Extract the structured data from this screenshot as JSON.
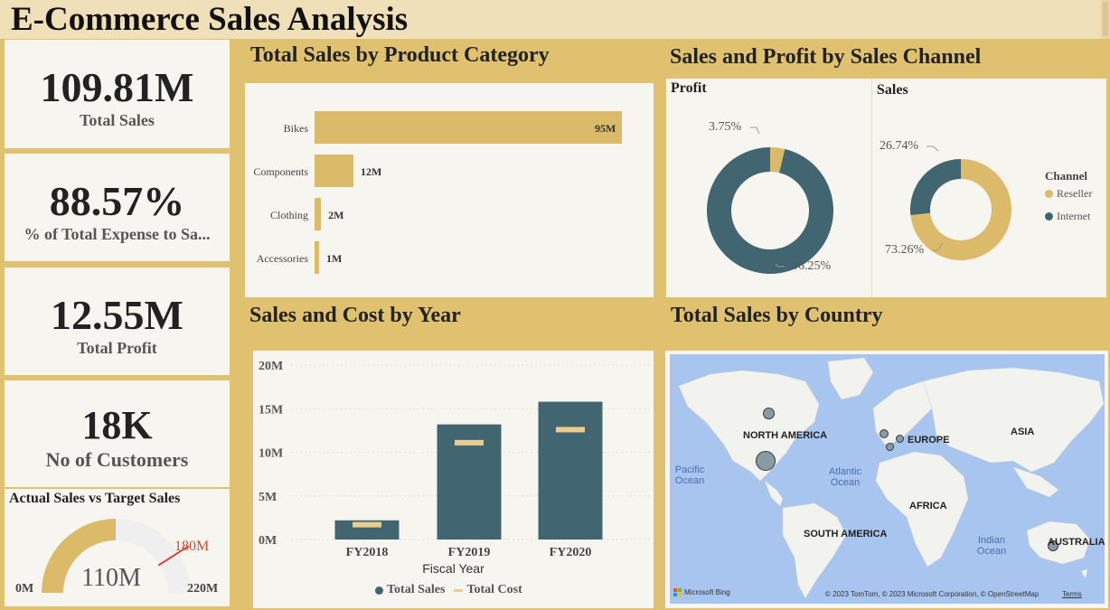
{
  "header": {
    "title": "E-Commerce Sales Analysis"
  },
  "kpis": [
    {
      "value": "109.81M",
      "label": "Total Sales"
    },
    {
      "value": "88.57%",
      "label": "% of Total Expense to Sa..."
    },
    {
      "value": "12.55M",
      "label": "Total Profit"
    },
    {
      "value": "18K",
      "label": "No of Customers"
    }
  ],
  "gauge": {
    "title": "Actual Sales vs Target Sales",
    "value_label": "110M",
    "target_label": "180M",
    "min_label": "0M",
    "max_label": "220M",
    "value": 110,
    "target": 180,
    "min": 0,
    "max": 220
  },
  "colors": {
    "gold": "#dbbb69",
    "teal": "#426671",
    "target": "#d04a3a",
    "gauge_bg": "#efefef"
  },
  "sections": {
    "category": "Total Sales by Product Category",
    "channel": "Sales and Profit by Sales Channel",
    "year": "Sales and Cost by Year",
    "country": "Total Sales by Country"
  },
  "chart_data": [
    {
      "type": "bar",
      "title": "Total Sales by Product Category",
      "categories": [
        "Bikes",
        "Components",
        "Clothing",
        "Accessories"
      ],
      "values": [
        95,
        12,
        2,
        1
      ],
      "labels": [
        "95M",
        "12M",
        "2M",
        "1M"
      ],
      "orientation": "horizontal"
    },
    {
      "type": "pie",
      "title": "Profit",
      "slices": [
        {
          "name": "Reseller",
          "value": 3.75,
          "label": "3.75%"
        },
        {
          "name": "Internet",
          "value": 96.25,
          "label": "96.25%"
        }
      ]
    },
    {
      "type": "pie",
      "title": "Sales",
      "legend_title": "Channel",
      "legend": [
        "Reseller",
        "Internet"
      ],
      "slices": [
        {
          "name": "Reseller",
          "value": 73.26,
          "label": "73.26%"
        },
        {
          "name": "Internet",
          "value": 26.74,
          "label": "26.74%"
        }
      ]
    },
    {
      "type": "bar",
      "title": "Sales and Cost by Year",
      "xlabel": "Fiscal Year",
      "categories": [
        "FY2018",
        "FY2019",
        "FY2020"
      ],
      "series": [
        {
          "name": "Total Sales",
          "values": [
            2.2,
            13.2,
            15.8
          ]
        },
        {
          "name": "Total Cost",
          "values": [
            1.7,
            11.1,
            12.6
          ]
        }
      ],
      "yticks": [
        "0M",
        "5M",
        "10M",
        "15M",
        "20M"
      ],
      "ylim": [
        0,
        20
      ]
    }
  ],
  "map": {
    "labels": [
      "NORTH AMERICA",
      "EUROPE",
      "ASIA",
      "AFRICA",
      "SOUTH AMERICA",
      "AUSTRALIA"
    ],
    "oceans": [
      "Pacific Ocean",
      "Atlantic Ocean",
      "Indian Ocean"
    ],
    "brand": "Microsoft Bing",
    "copyright": "© 2023 TomTom, © 2023 Microsoft Corporation, © OpenStreetMap",
    "terms": "Terms"
  }
}
